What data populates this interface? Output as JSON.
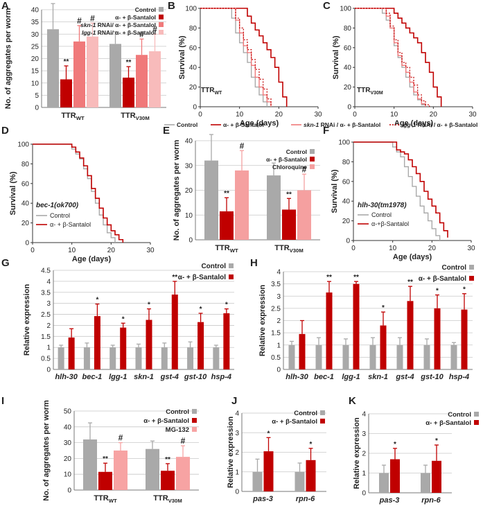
{
  "colors": {
    "control": "#a9a9a9",
    "treated": "#c00000",
    "third": "#f0797a",
    "fourth": "#f8bbbb",
    "chloroquine": "#f5a0a0",
    "mg132": "#f7a3a3",
    "grid": "#c8c8c8",
    "axis": "#777777",
    "text": "#222222"
  },
  "top_legend": {
    "items": [
      "Control",
      "α- + β-Santalol",
      "skn-1 RNAi / α- + β-Santalol",
      "lgg-1 RNAi / α- + β-Santalol"
    ]
  },
  "chart_data": [
    {
      "id": "A",
      "type": "bar",
      "panel": "A",
      "ylabel": "No. of aggregates per worm",
      "ylim": [
        0,
        40
      ],
      "yticks": [
        0,
        5,
        10,
        15,
        20,
        25,
        30,
        35,
        40
      ],
      "groups": [
        {
          "base": "TTR",
          "sub": "WT"
        },
        {
          "base": "TTR",
          "sub": "V30M"
        }
      ],
      "legend": [
        {
          "label": "Control"
        },
        {
          "label": "α- + β-Santalol"
        },
        {
          "label": "skn-1 RNAi/ α- + β-Santalol",
          "italic_prefix": "skn-1"
        },
        {
          "label": "lgg-1 RNAi/ α- + β-Santalol",
          "italic_prefix": "lgg-1"
        }
      ],
      "series": [
        {
          "name": "Control",
          "values": [
            32,
            26
          ],
          "errors": [
            10.5,
            5
          ],
          "marks": [
            "",
            ""
          ]
        },
        {
          "name": "α- + β-Santalol",
          "values": [
            11.5,
            12.2
          ],
          "errors": [
            5.5,
            4.5
          ],
          "marks": [
            "**",
            "**"
          ]
        },
        {
          "name": "skn-1 RNAi/ α- + β-Santalol",
          "values": [
            27,
            21.5
          ],
          "errors": [
            6.5,
            6.5
          ],
          "marks": [
            "#",
            "#"
          ]
        },
        {
          "name": "lgg-1 RNAi/ α- + β-Santalol",
          "values": [
            29,
            23
          ],
          "errors": [
            5.5,
            7
          ],
          "marks": [
            "#",
            "#"
          ]
        }
      ]
    },
    {
      "id": "B",
      "type": "line",
      "panel": "B",
      "xlabel": "Age (days)",
      "ylabel": "Survival (%)",
      "xlim": [
        0,
        30
      ],
      "ylim": [
        0,
        100
      ],
      "xticks": [
        0,
        10,
        20,
        30
      ],
      "yticks": [
        0,
        20,
        40,
        60,
        80,
        100
      ],
      "strain": {
        "base": "TTR",
        "sub": "WT"
      },
      "series": [
        {
          "name": "Control",
          "x": [
            0,
            7,
            8,
            9,
            10,
            11,
            12,
            13,
            14,
            15,
            16,
            17
          ],
          "y": [
            100,
            100,
            90,
            75,
            65,
            55,
            45,
            30,
            20,
            12,
            5,
            0
          ]
        },
        {
          "name": "α- + β-Santalol",
          "x": [
            0,
            10,
            12,
            13,
            14,
            15,
            16,
            17,
            18,
            19,
            20,
            21,
            22
          ],
          "y": [
            100,
            100,
            92,
            85,
            78,
            72,
            65,
            58,
            50,
            40,
            25,
            10,
            0
          ]
        },
        {
          "name": "skn-1 RNAi / α- + β-Santalol",
          "x": [
            0,
            8,
            9,
            10,
            11,
            12,
            13,
            14,
            15,
            16,
            17,
            18
          ],
          "y": [
            100,
            100,
            88,
            75,
            62,
            55,
            42,
            30,
            20,
            12,
            5,
            0
          ]
        },
        {
          "name": "lgg-1 RNAi / α- + β-Santalol",
          "x": [
            0,
            8,
            9,
            10,
            11,
            12,
            13,
            14,
            15,
            16,
            17,
            18
          ],
          "y": [
            100,
            100,
            90,
            80,
            68,
            58,
            48,
            38,
            28,
            18,
            8,
            0
          ]
        }
      ]
    },
    {
      "id": "C",
      "type": "line",
      "panel": "C",
      "xlabel": "Age (days)",
      "ylabel": "Survival (%)",
      "xlim": [
        0,
        30
      ],
      "ylim": [
        0,
        100
      ],
      "xticks": [
        0,
        10,
        20,
        30
      ],
      "yticks": [
        0,
        20,
        40,
        60,
        80,
        100
      ],
      "strain": {
        "base": "TTR",
        "sub": "V30M"
      },
      "series": [
        {
          "name": "Control",
          "x": [
            0,
            6,
            7,
            8,
            9,
            10,
            11,
            12,
            13,
            14,
            15,
            16,
            17,
            18
          ],
          "y": [
            100,
            100,
            95,
            88,
            80,
            62,
            50,
            40,
            30,
            20,
            12,
            7,
            2,
            0
          ]
        },
        {
          "name": "α- + β-Santalol",
          "x": [
            0,
            8,
            10,
            11,
            12,
            13,
            14,
            15,
            16,
            17,
            18,
            19,
            20,
            21,
            22
          ],
          "y": [
            100,
            100,
            95,
            90,
            85,
            80,
            75,
            70,
            65,
            55,
            45,
            35,
            20,
            10,
            0
          ]
        },
        {
          "name": "skn-1 RNAi / α- + β-Santalol",
          "x": [
            0,
            7,
            8,
            9,
            10,
            11,
            12,
            13,
            14,
            15,
            16,
            17,
            18
          ],
          "y": [
            100,
            100,
            92,
            80,
            65,
            52,
            42,
            35,
            25,
            15,
            8,
            3,
            0
          ]
        },
        {
          "name": "lgg-1 RNAi / α- + β-Santalol",
          "x": [
            0,
            7,
            8,
            9,
            10,
            11,
            12,
            13,
            14,
            15,
            16,
            17,
            18,
            19
          ],
          "y": [
            100,
            100,
            95,
            82,
            68,
            55,
            45,
            40,
            30,
            22,
            12,
            6,
            2,
            0
          ]
        }
      ]
    },
    {
      "id": "D",
      "type": "line",
      "panel": "D",
      "xlabel": "Age (days)",
      "ylabel": "Survival (%)",
      "xlim": [
        0,
        30
      ],
      "ylim": [
        0,
        100
      ],
      "xticks": [
        0,
        10,
        20,
        30
      ],
      "yticks": [
        0,
        20,
        40,
        60,
        80,
        100
      ],
      "strain": {
        "base": "bec-1(ok700)"
      },
      "legend": [
        "Control",
        "α- + β-Santalol"
      ],
      "series": [
        {
          "name": "Control",
          "x": [
            0,
            9,
            10,
            11,
            12,
            13,
            14,
            15,
            16,
            17,
            18,
            19,
            20,
            21
          ],
          "y": [
            100,
            100,
            95,
            90,
            85,
            75,
            65,
            52,
            40,
            28,
            18,
            10,
            5,
            0
          ]
        },
        {
          "name": "α- + β-Santalol",
          "x": [
            0,
            9,
            10,
            11,
            12,
            13,
            14,
            15,
            16,
            17,
            18,
            19,
            20,
            21,
            22,
            23
          ],
          "y": [
            100,
            100,
            97,
            92,
            86,
            78,
            68,
            55,
            45,
            35,
            25,
            18,
            12,
            8,
            3,
            0
          ]
        }
      ]
    },
    {
      "id": "E",
      "type": "bar",
      "panel": "E",
      "ylabel": "No. of aggregates per worm",
      "ylim": [
        0,
        40
      ],
      "yticks": [
        0,
        10,
        20,
        30,
        40
      ],
      "groups": [
        {
          "base": "TTR",
          "sub": "WT"
        },
        {
          "base": "TTR",
          "sub": "V30M"
        }
      ],
      "legend": [
        {
          "label": "Control"
        },
        {
          "label": "α- + β-Santalol"
        },
        {
          "label": "Chloroquine"
        }
      ],
      "series": [
        {
          "name": "Control",
          "values": [
            32,
            26
          ],
          "errors": [
            10.5,
            5
          ],
          "marks": [
            "",
            ""
          ]
        },
        {
          "name": "α- + β-Santalol",
          "values": [
            11.5,
            12.2
          ],
          "errors": [
            5.5,
            4.5
          ],
          "marks": [
            "**",
            "**"
          ]
        },
        {
          "name": "Chloroquine",
          "values": [
            28,
            20
          ],
          "errors": [
            8,
            6.5
          ],
          "marks": [
            "#",
            "#"
          ]
        }
      ]
    },
    {
      "id": "F",
      "type": "line",
      "panel": "F",
      "xlabel": "Age (days)",
      "ylabel": "Survival (%)",
      "xlim": [
        0,
        30
      ],
      "ylim": [
        0,
        100
      ],
      "xticks": [
        0,
        10,
        20,
        30
      ],
      "yticks": [
        0,
        20,
        40,
        60,
        80,
        100
      ],
      "strain": {
        "base": "hlh-30(tm1978)"
      },
      "legend": [
        "Control",
        "α-+β-Santalol"
      ],
      "series": [
        {
          "name": "Control",
          "x": [
            0,
            9,
            10,
            11,
            12,
            13,
            14,
            15,
            16,
            17,
            18,
            19,
            20,
            21,
            22
          ],
          "y": [
            100,
            100,
            95,
            90,
            85,
            75,
            65,
            55,
            45,
            35,
            28,
            20,
            12,
            5,
            0
          ]
        },
        {
          "name": "α-+β-Santalol",
          "x": [
            0,
            10,
            11,
            12,
            13,
            14,
            15,
            16,
            17,
            18,
            19,
            20,
            21,
            22,
            23,
            24
          ],
          "y": [
            100,
            100,
            92,
            90,
            88,
            82,
            75,
            68,
            60,
            50,
            42,
            35,
            28,
            18,
            10,
            3
          ]
        }
      ]
    },
    {
      "id": "G",
      "type": "bar",
      "panel": "G",
      "ylabel": "Relative expression",
      "ylim": [
        0,
        4.5
      ],
      "yticks": [
        0,
        0.5,
        1,
        1.5,
        2,
        2.5,
        3,
        3.5,
        4,
        4.5
      ],
      "categories": [
        "hlh-30",
        "bec-1",
        "lgg-1",
        "skn-1",
        "gst-4",
        "gst-10",
        "hsp-4"
      ],
      "legend": [
        {
          "label": "Control"
        },
        {
          "label": "α- + β-Santalol"
        }
      ],
      "series": [
        {
          "name": "Control",
          "values": [
            1,
            1,
            1,
            1,
            1,
            1,
            1
          ],
          "errors": [
            0.1,
            0.2,
            0.1,
            0.15,
            0.2,
            0.25,
            0.1
          ],
          "marks": [
            "",
            "",
            "",
            "",
            "",
            "",
            ""
          ]
        },
        {
          "name": "α- + β-Santalol",
          "values": [
            1.45,
            2.42,
            1.9,
            2.25,
            3.4,
            2.15,
            2.55
          ],
          "errors": [
            0.4,
            0.55,
            0.2,
            0.5,
            0.6,
            0.4,
            0.2
          ],
          "marks": [
            "",
            "*",
            "*",
            "*",
            "**",
            "*",
            "*"
          ]
        }
      ]
    },
    {
      "id": "H",
      "type": "bar",
      "panel": "H",
      "ylabel": "Relative expression",
      "ylim": [
        0,
        4
      ],
      "yticks": [
        0,
        0.5,
        1,
        1.5,
        2,
        2.5,
        3,
        3.5,
        4
      ],
      "categories": [
        "hlh-30",
        "bec-1",
        "lgg-1",
        "skn-1",
        "gst-4",
        "gst-10",
        "hsp-4"
      ],
      "legend": [
        {
          "label": "Control"
        },
        {
          "label": "α- + β-Santalol"
        }
      ],
      "series": [
        {
          "name": "Control",
          "values": [
            1,
            1,
            1,
            1,
            1,
            1,
            1
          ],
          "errors": [
            0.15,
            0.3,
            0.25,
            0.3,
            0.3,
            0.25,
            0.1
          ],
          "marks": [
            "",
            "",
            "",
            "",
            "",
            "",
            ""
          ]
        },
        {
          "name": "α- + β-Santalol",
          "values": [
            1.45,
            3.15,
            3.5,
            1.8,
            2.8,
            2.5,
            2.45
          ],
          "errors": [
            0.55,
            0.45,
            0.1,
            0.55,
            0.6,
            0.55,
            0.65
          ],
          "marks": [
            "",
            "**",
            "**",
            "*",
            "**",
            "*",
            "*"
          ]
        }
      ]
    },
    {
      "id": "I",
      "type": "bar",
      "panel": "I",
      "ylabel": "No. of aggregates per worm",
      "ylim": [
        0,
        50
      ],
      "yticks": [
        0,
        10,
        20,
        30,
        40,
        50
      ],
      "groups": [
        {
          "base": "TTR",
          "sub": "WT"
        },
        {
          "base": "TTR",
          "sub": "V30M"
        }
      ],
      "legend": [
        {
          "label": "Control"
        },
        {
          "label": "α- + β-Santalol"
        },
        {
          "label": "MG-132"
        }
      ],
      "series": [
        {
          "name": "Control",
          "values": [
            32,
            26
          ],
          "errors": [
            10.5,
            5
          ],
          "marks": [
            "",
            ""
          ]
        },
        {
          "name": "α- + β-Santalol",
          "values": [
            11.5,
            12.2
          ],
          "errors": [
            5.5,
            4.5
          ],
          "marks": [
            "**",
            "**"
          ]
        },
        {
          "name": "MG-132",
          "values": [
            25,
            21
          ],
          "errors": [
            5,
            7
          ],
          "marks": [
            "#",
            "#"
          ]
        }
      ]
    },
    {
      "id": "J",
      "type": "bar",
      "panel": "J",
      "ylabel": "Relative expression",
      "ylim": [
        0,
        4
      ],
      "yticks": [
        0,
        1,
        2,
        3,
        4
      ],
      "categories": [
        "pas-3",
        "rpn-6"
      ],
      "legend": [
        {
          "label": "Control"
        },
        {
          "label": "α- + β-Santalol"
        }
      ],
      "series": [
        {
          "name": "Control",
          "values": [
            1,
            1
          ],
          "errors": [
            0.65,
            0.45
          ],
          "marks": [
            "",
            ""
          ]
        },
        {
          "name": "α- + β-Santalol",
          "values": [
            2.05,
            1.6
          ],
          "errors": [
            0.7,
            0.6
          ],
          "marks": [
            "*",
            "*"
          ]
        }
      ]
    },
    {
      "id": "K",
      "type": "bar",
      "panel": "K",
      "ylabel": "Relative expression",
      "ylim": [
        0,
        4
      ],
      "yticks": [
        0,
        1,
        2,
        3,
        4
      ],
      "categories": [
        "pas-3",
        "rpn-6"
      ],
      "legend": [
        {
          "label": "Control"
        },
        {
          "label": "α- + β-Santalol"
        }
      ],
      "series": [
        {
          "name": "Control",
          "values": [
            1,
            1
          ],
          "errors": [
            0.4,
            0.4
          ],
          "marks": [
            "",
            ""
          ]
        },
        {
          "name": "α- + β-Santalol",
          "values": [
            1.7,
            1.62
          ],
          "errors": [
            0.55,
            0.8
          ],
          "marks": [
            "*",
            "*"
          ]
        }
      ]
    }
  ]
}
